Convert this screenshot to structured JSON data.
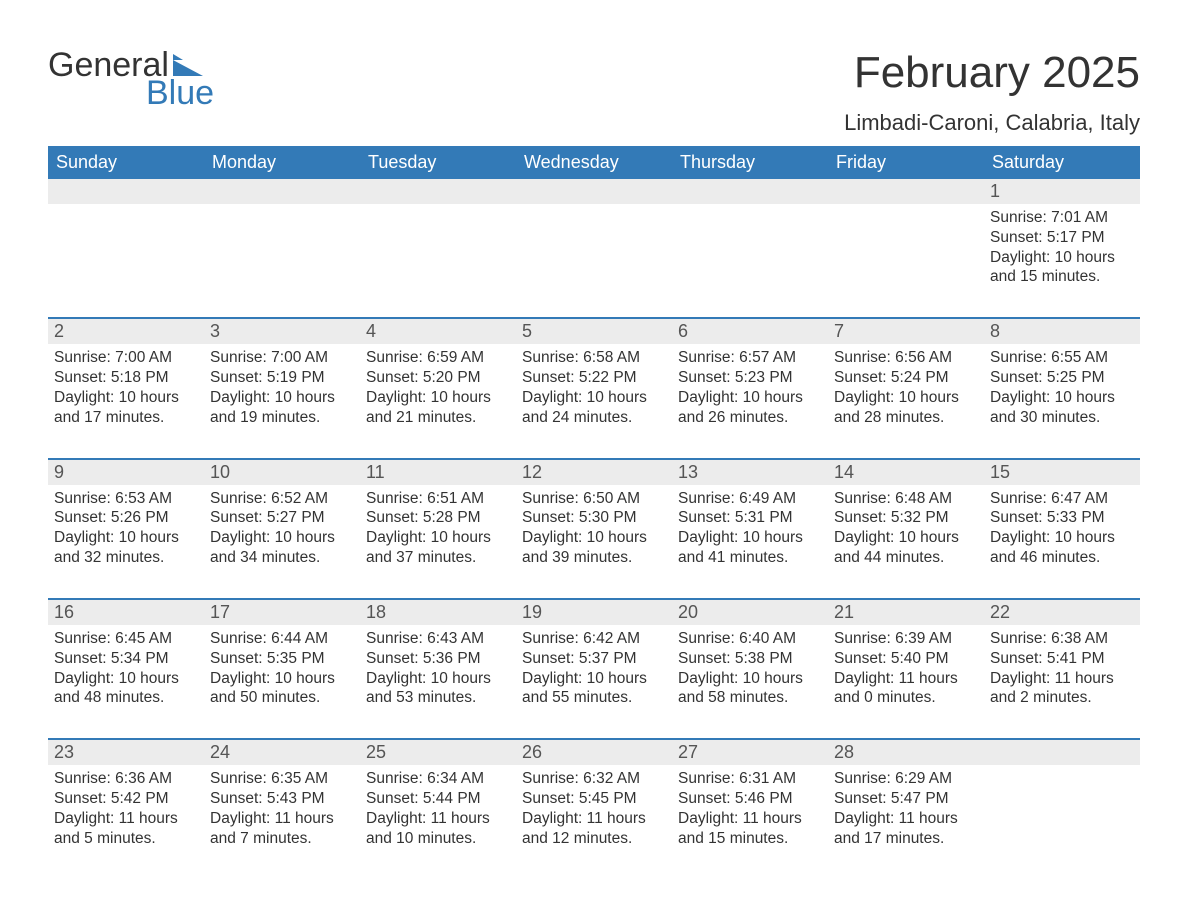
{
  "brand": {
    "word1": "General",
    "word2": "Blue",
    "text_color": "#333333",
    "accent_color": "#337ab7"
  },
  "header": {
    "title": "February 2025",
    "location": "Limbadi-Caroni, Calabria, Italy"
  },
  "colors": {
    "header_bg": "#337ab7",
    "header_text": "#ffffff",
    "daynum_bg": "#ececec",
    "daynum_text": "#555555",
    "week_divider": "#337ab7",
    "body_text": "#333333",
    "page_bg": "#ffffff"
  },
  "typography": {
    "title_fontsize": 44,
    "location_fontsize": 22,
    "dow_fontsize": 18,
    "daynum_fontsize": 18,
    "detail_fontsize": 15.5,
    "font_family": "Arial, Helvetica, sans-serif"
  },
  "calendar": {
    "type": "table",
    "days_of_week": [
      "Sunday",
      "Monday",
      "Tuesday",
      "Wednesday",
      "Thursday",
      "Friday",
      "Saturday"
    ],
    "weeks": [
      [
        null,
        null,
        null,
        null,
        null,
        null,
        {
          "day": "1",
          "sunrise": "Sunrise: 7:01 AM",
          "sunset": "Sunset: 5:17 PM",
          "daylight": "Daylight: 10 hours and 15 minutes."
        }
      ],
      [
        {
          "day": "2",
          "sunrise": "Sunrise: 7:00 AM",
          "sunset": "Sunset: 5:18 PM",
          "daylight": "Daylight: 10 hours and 17 minutes."
        },
        {
          "day": "3",
          "sunrise": "Sunrise: 7:00 AM",
          "sunset": "Sunset: 5:19 PM",
          "daylight": "Daylight: 10 hours and 19 minutes."
        },
        {
          "day": "4",
          "sunrise": "Sunrise: 6:59 AM",
          "sunset": "Sunset: 5:20 PM",
          "daylight": "Daylight: 10 hours and 21 minutes."
        },
        {
          "day": "5",
          "sunrise": "Sunrise: 6:58 AM",
          "sunset": "Sunset: 5:22 PM",
          "daylight": "Daylight: 10 hours and 24 minutes."
        },
        {
          "day": "6",
          "sunrise": "Sunrise: 6:57 AM",
          "sunset": "Sunset: 5:23 PM",
          "daylight": "Daylight: 10 hours and 26 minutes."
        },
        {
          "day": "7",
          "sunrise": "Sunrise: 6:56 AM",
          "sunset": "Sunset: 5:24 PM",
          "daylight": "Daylight: 10 hours and 28 minutes."
        },
        {
          "day": "8",
          "sunrise": "Sunrise: 6:55 AM",
          "sunset": "Sunset: 5:25 PM",
          "daylight": "Daylight: 10 hours and 30 minutes."
        }
      ],
      [
        {
          "day": "9",
          "sunrise": "Sunrise: 6:53 AM",
          "sunset": "Sunset: 5:26 PM",
          "daylight": "Daylight: 10 hours and 32 minutes."
        },
        {
          "day": "10",
          "sunrise": "Sunrise: 6:52 AM",
          "sunset": "Sunset: 5:27 PM",
          "daylight": "Daylight: 10 hours and 34 minutes."
        },
        {
          "day": "11",
          "sunrise": "Sunrise: 6:51 AM",
          "sunset": "Sunset: 5:28 PM",
          "daylight": "Daylight: 10 hours and 37 minutes."
        },
        {
          "day": "12",
          "sunrise": "Sunrise: 6:50 AM",
          "sunset": "Sunset: 5:30 PM",
          "daylight": "Daylight: 10 hours and 39 minutes."
        },
        {
          "day": "13",
          "sunrise": "Sunrise: 6:49 AM",
          "sunset": "Sunset: 5:31 PM",
          "daylight": "Daylight: 10 hours and 41 minutes."
        },
        {
          "day": "14",
          "sunrise": "Sunrise: 6:48 AM",
          "sunset": "Sunset: 5:32 PM",
          "daylight": "Daylight: 10 hours and 44 minutes."
        },
        {
          "day": "15",
          "sunrise": "Sunrise: 6:47 AM",
          "sunset": "Sunset: 5:33 PM",
          "daylight": "Daylight: 10 hours and 46 minutes."
        }
      ],
      [
        {
          "day": "16",
          "sunrise": "Sunrise: 6:45 AM",
          "sunset": "Sunset: 5:34 PM",
          "daylight": "Daylight: 10 hours and 48 minutes."
        },
        {
          "day": "17",
          "sunrise": "Sunrise: 6:44 AM",
          "sunset": "Sunset: 5:35 PM",
          "daylight": "Daylight: 10 hours and 50 minutes."
        },
        {
          "day": "18",
          "sunrise": "Sunrise: 6:43 AM",
          "sunset": "Sunset: 5:36 PM",
          "daylight": "Daylight: 10 hours and 53 minutes."
        },
        {
          "day": "19",
          "sunrise": "Sunrise: 6:42 AM",
          "sunset": "Sunset: 5:37 PM",
          "daylight": "Daylight: 10 hours and 55 minutes."
        },
        {
          "day": "20",
          "sunrise": "Sunrise: 6:40 AM",
          "sunset": "Sunset: 5:38 PM",
          "daylight": "Daylight: 10 hours and 58 minutes."
        },
        {
          "day": "21",
          "sunrise": "Sunrise: 6:39 AM",
          "sunset": "Sunset: 5:40 PM",
          "daylight": "Daylight: 11 hours and 0 minutes."
        },
        {
          "day": "22",
          "sunrise": "Sunrise: 6:38 AM",
          "sunset": "Sunset: 5:41 PM",
          "daylight": "Daylight: 11 hours and 2 minutes."
        }
      ],
      [
        {
          "day": "23",
          "sunrise": "Sunrise: 6:36 AM",
          "sunset": "Sunset: 5:42 PM",
          "daylight": "Daylight: 11 hours and 5 minutes."
        },
        {
          "day": "24",
          "sunrise": "Sunrise: 6:35 AM",
          "sunset": "Sunset: 5:43 PM",
          "daylight": "Daylight: 11 hours and 7 minutes."
        },
        {
          "day": "25",
          "sunrise": "Sunrise: 6:34 AM",
          "sunset": "Sunset: 5:44 PM",
          "daylight": "Daylight: 11 hours and 10 minutes."
        },
        {
          "day": "26",
          "sunrise": "Sunrise: 6:32 AM",
          "sunset": "Sunset: 5:45 PM",
          "daylight": "Daylight: 11 hours and 12 minutes."
        },
        {
          "day": "27",
          "sunrise": "Sunrise: 6:31 AM",
          "sunset": "Sunset: 5:46 PM",
          "daylight": "Daylight: 11 hours and 15 minutes."
        },
        {
          "day": "28",
          "sunrise": "Sunrise: 6:29 AM",
          "sunset": "Sunset: 5:47 PM",
          "daylight": "Daylight: 11 hours and 17 minutes."
        },
        null
      ]
    ]
  }
}
